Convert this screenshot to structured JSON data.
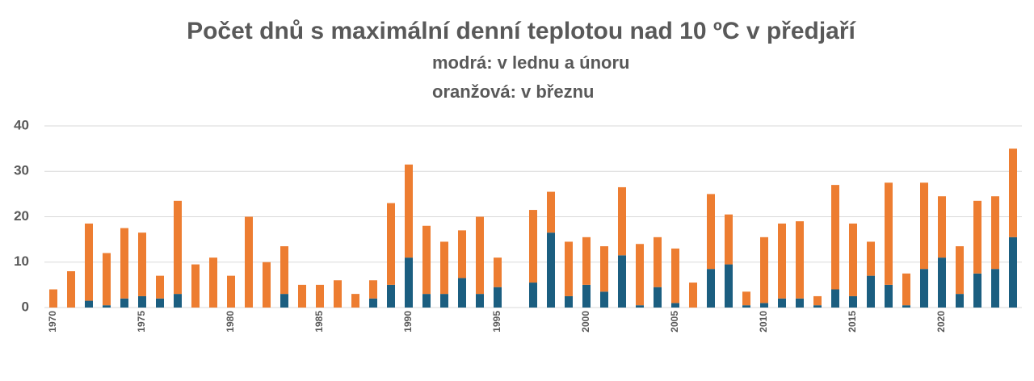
{
  "chart_data": {
    "type": "stacked_bar",
    "title": "Počet dnů s maximální denní teplotou nad 10 ºC v předjaří",
    "subtitle": [
      "modrá:  v lednu a únoru",
      "oranžová:  v březnu"
    ],
    "categories": [
      "1970",
      null,
      null,
      null,
      null,
      "1975",
      null,
      null,
      null,
      null,
      "1980",
      null,
      null,
      null,
      null,
      "1985",
      null,
      null,
      null,
      null,
      "1990",
      null,
      null,
      null,
      null,
      "1995",
      null,
      null,
      null,
      null,
      "2000",
      null,
      null,
      null,
      null,
      "2005",
      null,
      null,
      null,
      null,
      "2010",
      null,
      null,
      null,
      null,
      "2015",
      null,
      null,
      null,
      null,
      "2020",
      null,
      null,
      null,
      null
    ],
    "series": [
      {
        "color": "#1b5e80",
        "values": [
          0,
          0,
          1.5,
          0.5,
          2,
          2.5,
          2,
          3,
          0,
          0,
          0,
          0,
          0,
          3,
          0,
          0,
          0,
          0,
          2,
          5,
          11,
          3,
          3,
          6.5,
          3,
          4.5,
          0,
          5.5,
          16.5,
          2.5,
          5,
          3.5,
          11.5,
          0.5,
          4.5,
          1,
          0,
          8.5,
          9.5,
          0.5,
          1,
          2,
          2,
          0.5,
          4,
          2.5,
          7,
          5,
          0.5,
          8.5,
          11,
          3,
          7.5,
          8.5,
          15.5
        ]
      },
      {
        "color": "#ed7d31",
        "values": [
          4,
          8,
          17,
          11.5,
          15.5,
          14,
          5,
          20.5,
          9.5,
          11,
          7,
          20,
          10,
          10.5,
          5,
          5,
          6,
          3,
          4,
          18,
          20.5,
          15,
          11.5,
          10.5,
          17,
          6.5,
          0,
          16,
          9,
          12,
          10.5,
          10,
          15,
          13.5,
          11,
          12,
          5.5,
          16.5,
          11,
          3,
          14.5,
          16.5,
          17,
          2,
          23,
          16,
          7.5,
          22.5,
          7,
          19,
          13.5,
          10.5,
          16,
          16,
          19.5
        ]
      }
    ],
    "ylim": [
      0,
      40
    ],
    "yticks": [
      0,
      10,
      20,
      30,
      40
    ],
    "grid": true
  }
}
